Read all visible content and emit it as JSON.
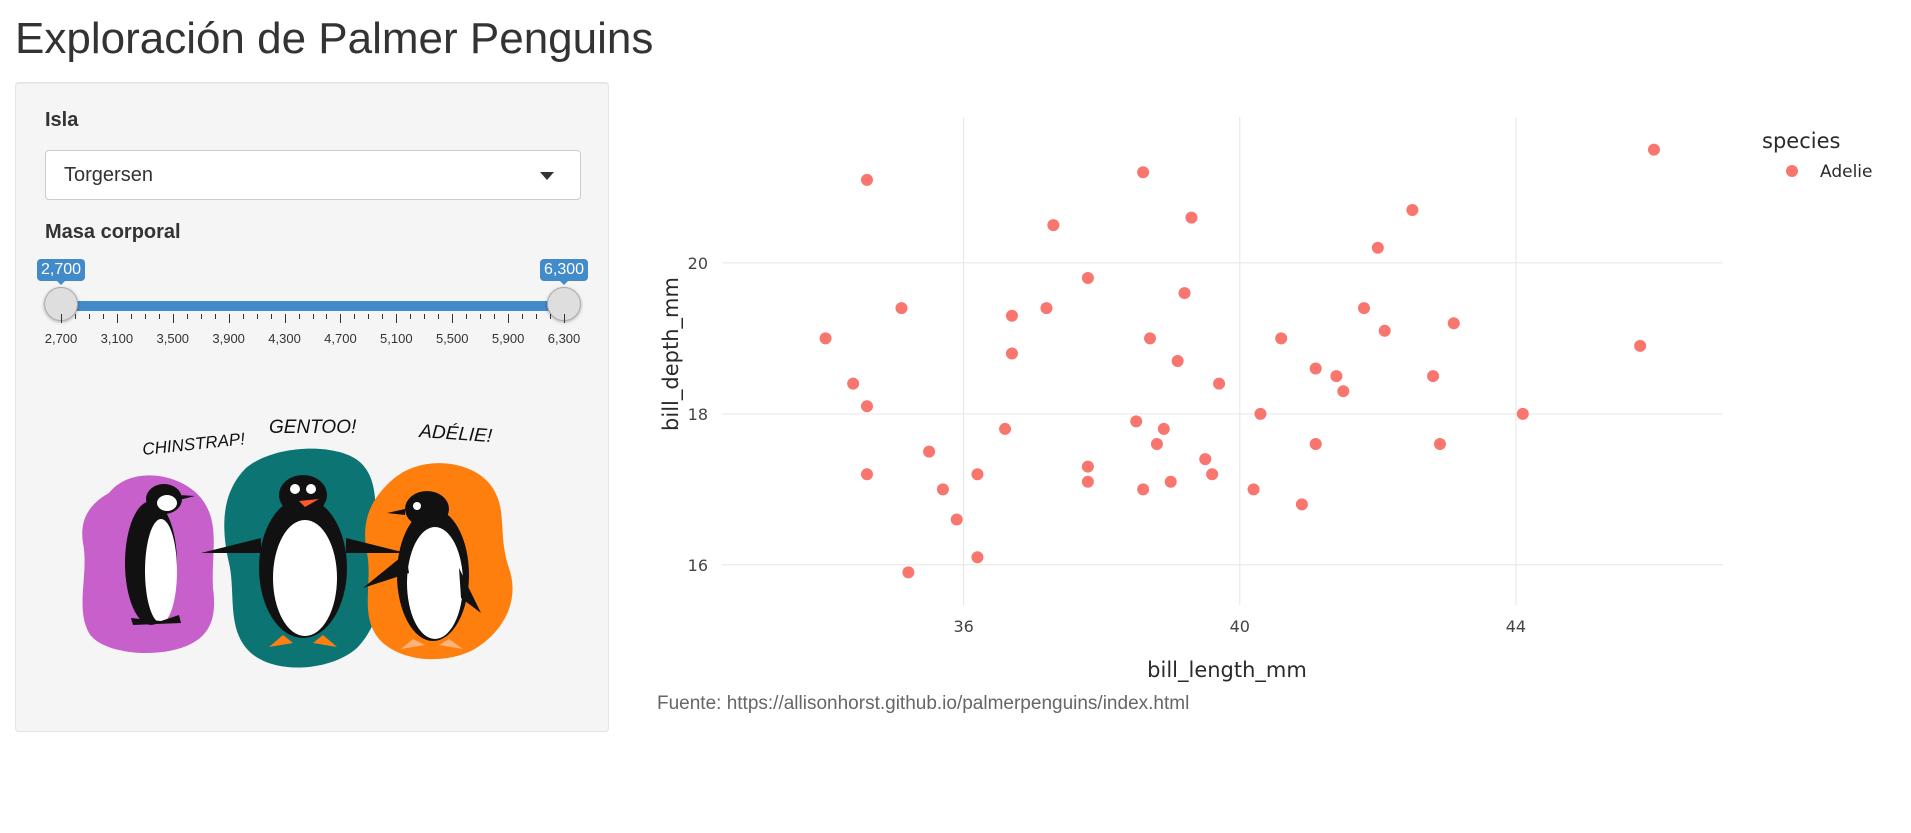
{
  "page": {
    "title": "Exploración de Palmer Penguins"
  },
  "sidebar": {
    "island_label": "Isla",
    "island_value": "Torgersen",
    "mass_label": "Masa corporal",
    "slider": {
      "min": 2700,
      "max": 6300,
      "from": 2700,
      "to": 6300,
      "from_label": "2,700",
      "to_label": "6,300",
      "tick_labels": [
        "2,700",
        "3,100",
        "3,500",
        "3,900",
        "4,300",
        "4,700",
        "5,100",
        "5,500",
        "5,900",
        "6,300"
      ]
    },
    "artwork": {
      "labels": [
        "CHINSTRAP!",
        "GENTOO!",
        "ADÉLIE!"
      ]
    }
  },
  "source_note": "Fuente: https://allisonhorst.github.io/palmerpenguins/index.html",
  "chart_data": {
    "type": "scatter",
    "xlabel": "bill_length_mm",
    "ylabel": "bill_depth_mm",
    "xlim": [
      32.5,
      47.0
    ],
    "ylim": [
      15.6,
      21.8
    ],
    "xticks": [
      36,
      40,
      44
    ],
    "yticks": [
      16,
      18,
      20
    ],
    "grid": true,
    "legend": {
      "title": "species",
      "placement": "right"
    },
    "series": [
      {
        "name": "Adelie",
        "color": "#F8766D",
        "points": [
          [
            34.6,
            21.1
          ],
          [
            46.0,
            21.5
          ],
          [
            38.6,
            21.2
          ],
          [
            39.3,
            20.6
          ],
          [
            42.5,
            20.7
          ],
          [
            37.3,
            20.5
          ],
          [
            42.0,
            20.2
          ],
          [
            37.8,
            19.8
          ],
          [
            39.2,
            19.6
          ],
          [
            35.1,
            19.4
          ],
          [
            36.7,
            19.3
          ],
          [
            37.2,
            19.4
          ],
          [
            41.8,
            19.4
          ],
          [
            43.1,
            19.2
          ],
          [
            42.1,
            19.1
          ],
          [
            34.0,
            19.0
          ],
          [
            38.7,
            19.0
          ],
          [
            40.6,
            19.0
          ],
          [
            45.8,
            18.9
          ],
          [
            36.7,
            18.8
          ],
          [
            39.1,
            18.7
          ],
          [
            41.1,
            18.6
          ],
          [
            41.4,
            18.5
          ],
          [
            42.8,
            18.5
          ],
          [
            34.4,
            18.4
          ],
          [
            39.7,
            18.4
          ],
          [
            41.5,
            18.3
          ],
          [
            34.6,
            18.1
          ],
          [
            40.3,
            18.0
          ],
          [
            44.1,
            18.0
          ],
          [
            38.5,
            17.9
          ],
          [
            36.6,
            17.8
          ],
          [
            38.9,
            17.8
          ],
          [
            38.8,
            17.6
          ],
          [
            41.1,
            17.6
          ],
          [
            42.9,
            17.6
          ],
          [
            35.5,
            17.5
          ],
          [
            39.5,
            17.4
          ],
          [
            37.8,
            17.3
          ],
          [
            34.6,
            17.2
          ],
          [
            36.2,
            17.2
          ],
          [
            39.6,
            17.2
          ],
          [
            37.8,
            17.1
          ],
          [
            39.0,
            17.1
          ],
          [
            35.7,
            17.0
          ],
          [
            38.6,
            17.0
          ],
          [
            40.2,
            17.0
          ],
          [
            40.9,
            16.8
          ],
          [
            35.9,
            16.6
          ],
          [
            36.2,
            16.1
          ],
          [
            35.2,
            15.9
          ]
        ]
      }
    ]
  }
}
